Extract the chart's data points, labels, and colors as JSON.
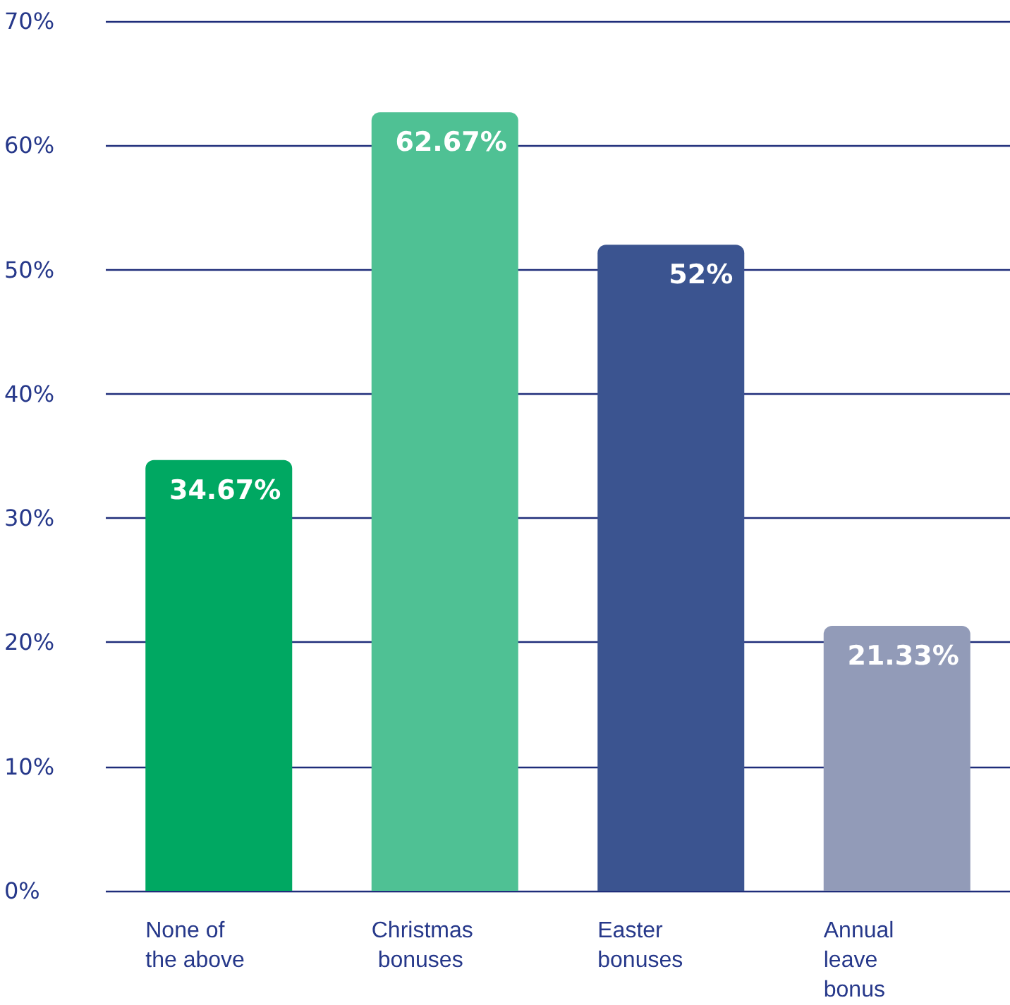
{
  "chart_data": {
    "type": "bar",
    "categories": [
      "None of the above",
      "Christmas bonuses",
      "Easter bonuses",
      "Annual leave bonus"
    ],
    "values": [
      34.67,
      62.67,
      52,
      21.33
    ],
    "colors": [
      "#00a862",
      "#4fc194",
      "#3b5490",
      "#929bb8"
    ],
    "value_labels": [
      "34.67%",
      "62.67%",
      "52%",
      "21.33%"
    ],
    "ylim": [
      0,
      70
    ],
    "yticks": [
      {
        "value": 0,
        "label": "0%"
      },
      {
        "value": 10,
        "label": "10%"
      },
      {
        "value": 20,
        "label": "20%"
      },
      {
        "value": 30,
        "label": "30%"
      },
      {
        "value": 40,
        "label": "40%"
      },
      {
        "value": 50,
        "label": "50%"
      },
      {
        "value": 60,
        "label": "60%"
      },
      {
        "value": 70,
        "label": "70%"
      }
    ],
    "grid": "y"
  }
}
